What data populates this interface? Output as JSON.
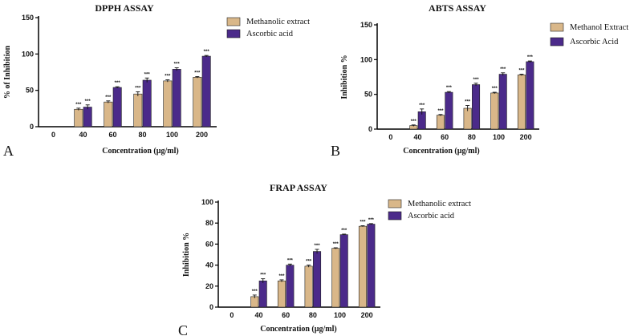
{
  "colors": {
    "extract": "#d9b789",
    "ascorbic": "#4b2a8a",
    "axis": "#000000"
  },
  "chart_data": [
    {
      "type": "bar",
      "panel_label": "A",
      "title": "DPPH ASSAY",
      "xlabel": "Concentration (µg/ml)",
      "ylabel": "% of Inhibition",
      "categories": [
        "0",
        "40",
        "60",
        "80",
        "100",
        "200"
      ],
      "ylim": [
        0,
        150
      ],
      "yticks": [
        "0",
        "50",
        "100",
        "150"
      ],
      "significance": "***",
      "legend_position": "top-right",
      "series": [
        {
          "name": "Methanolic extract",
          "values": [
            0,
            24,
            34,
            45,
            63,
            68
          ],
          "errors": [
            0,
            1.5,
            1.5,
            3,
            1.5,
            1
          ]
        },
        {
          "name": "Ascorbic acid",
          "values": [
            0,
            27,
            54,
            64,
            79,
            97
          ],
          "errors": [
            0,
            3,
            1,
            3,
            2,
            1
          ]
        }
      ]
    },
    {
      "type": "bar",
      "panel_label": "B",
      "title": "ABTS ASSAY",
      "xlabel": "Concentration (µg/ml)",
      "ylabel": "Inhibition %",
      "categories": [
        "0",
        "40",
        "60",
        "80",
        "100",
        "200"
      ],
      "ylim": [
        0,
        150
      ],
      "yticks": [
        "0",
        "50",
        "100",
        "150"
      ],
      "significance": "***",
      "legend_position": "top-right",
      "series": [
        {
          "name": "Methanol Extract",
          "values": [
            0,
            5,
            20,
            30,
            52,
            78
          ],
          "errors": [
            0,
            1,
            1,
            4,
            1,
            1
          ]
        },
        {
          "name": "Ascorbic Acid",
          "values": [
            0,
            25,
            53,
            64,
            79,
            97
          ],
          "errors": [
            0,
            4,
            1,
            2,
            2,
            1
          ]
        }
      ]
    },
    {
      "type": "bar",
      "panel_label": "C",
      "title": "FRAP ASSAY",
      "xlabel": "Concentration (µg/ml)",
      "ylabel": "Inhibition %",
      "categories": [
        "0",
        "40",
        "60",
        "80",
        "100",
        "200"
      ],
      "ylim": [
        0,
        100
      ],
      "yticks": [
        "0",
        "20",
        "40",
        "60",
        "80",
        "100"
      ],
      "significance": "***",
      "legend_position": "top-right",
      "series": [
        {
          "name": "Methanolic extract",
          "values": [
            0,
            10,
            25,
            39,
            56,
            77
          ],
          "errors": [
            0,
            1.5,
            1,
            1,
            0.5,
            0.5
          ]
        },
        {
          "name": "Ascorbic acid",
          "values": [
            0,
            25,
            40,
            53,
            69,
            79
          ],
          "errors": [
            0,
            2,
            1,
            2,
            0.5,
            0.5
          ]
        }
      ]
    }
  ]
}
